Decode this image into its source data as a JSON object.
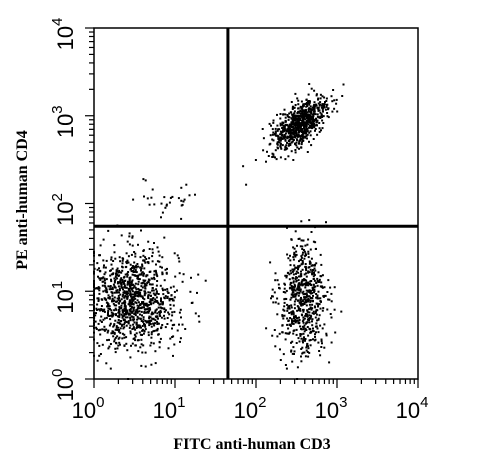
{
  "chart_data": {
    "type": "scatter",
    "title": "",
    "xlabel": "FITC anti-human CD3",
    "ylabel": "PE anti-human CD4",
    "xscale": "log",
    "yscale": "log",
    "xlim": [
      1,
      10000
    ],
    "ylim": [
      1,
      10000
    ],
    "grid": false,
    "legend": "none",
    "x_ticks": [
      {
        "value": 1,
        "base": "10",
        "exp": "0"
      },
      {
        "value": 10,
        "base": "10",
        "exp": "1"
      },
      {
        "value": 100,
        "base": "10",
        "exp": "2"
      },
      {
        "value": 1000,
        "base": "10",
        "exp": "3"
      },
      {
        "value": 10000,
        "base": "10",
        "exp": "4"
      }
    ],
    "y_ticks": [
      {
        "value": 1,
        "base": "10",
        "exp": "0"
      },
      {
        "value": 10,
        "base": "10",
        "exp": "1"
      },
      {
        "value": 100,
        "base": "10",
        "exp": "2"
      },
      {
        "value": 1000,
        "base": "10",
        "exp": "3"
      },
      {
        "value": 10000,
        "base": "10",
        "exp": "4"
      }
    ],
    "quadrant_gates": {
      "x": 45,
      "y": 55
    },
    "point_color": "#000000",
    "populations": [
      {
        "name": "",
        "center": [
          3,
          8
        ],
        "count": 1100
      },
      {
        "name": "",
        "center": [
          350,
          800
        ],
        "count": 750
      },
      {
        "name": "",
        "center": [
          380,
          8
        ],
        "count": 650
      },
      {
        "name": "",
        "center": [
          9,
          110
        ],
        "count": 30
      }
    ]
  }
}
